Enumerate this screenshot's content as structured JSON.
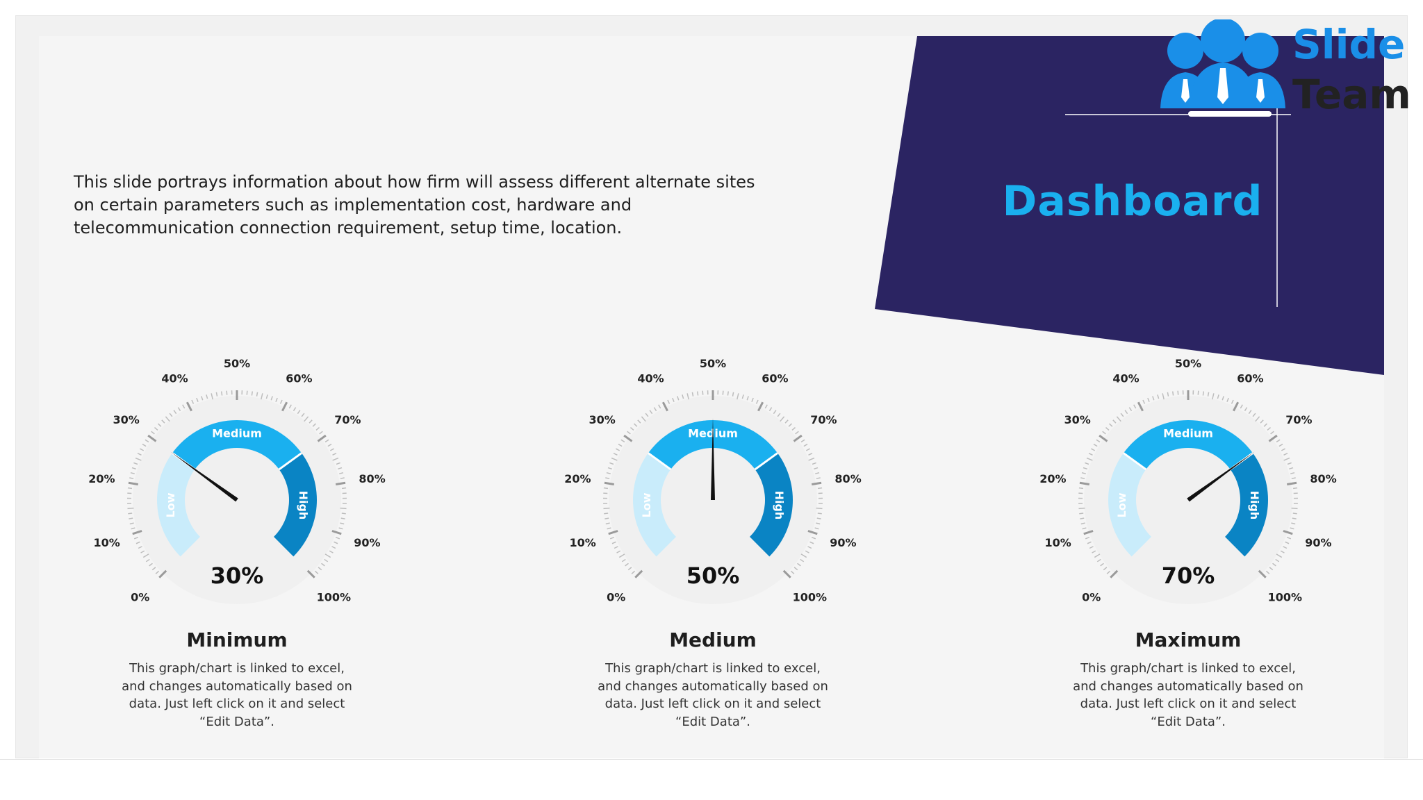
{
  "slide": {
    "title": "Dashboard",
    "description": "This slide portrays information about how firm will assess different alternate sites on certain parameters such as implementation cost, hardware and telecommunication connection requirement, setup time, location."
  },
  "logo": {
    "line1": "Slide",
    "line2": "Team",
    "icon": "people-group-icon"
  },
  "colors": {
    "panel": "#2b2462",
    "title": "#1ab0ef",
    "low": "#c9ecfb",
    "medium": "#1ab0ef",
    "high": "#0a84c4",
    "needle": "#111111",
    "tick": "#bdbdbd"
  },
  "band_labels": {
    "low": "Low",
    "medium": "Medium",
    "high": "High"
  },
  "scale_labels": [
    "0%",
    "10%",
    "20%",
    "30%",
    "40%",
    "50%",
    "60%",
    "70%",
    "80%",
    "90%",
    "100%"
  ],
  "gauges": [
    {
      "value_label": "30%",
      "title": "Minimum",
      "description": "This graph/chart is linked to excel, and changes automatically based on data. Just left click on it and select “Edit Data”."
    },
    {
      "value_label": "50%",
      "title": "Medium",
      "description": "This graph/chart is linked to excel, and changes automatically based on data. Just left click on it and select “Edit Data”."
    },
    {
      "value_label": "70%",
      "title": "Maximum",
      "description": "This graph/chart is linked to excel, and changes automatically based on data. Just left click on it and select “Edit Data”."
    }
  ],
  "chart_data": {
    "type": "gauge",
    "scale": [
      0,
      100
    ],
    "unit": "%",
    "bands": [
      {
        "name": "Low",
        "from": 0,
        "to": 30
      },
      {
        "name": "Medium",
        "from": 30,
        "to": 70
      },
      {
        "name": "High",
        "from": 70,
        "to": 100
      }
    ],
    "values": [
      30,
      50,
      70
    ],
    "categories": [
      "Minimum",
      "Medium",
      "Maximum"
    ]
  }
}
